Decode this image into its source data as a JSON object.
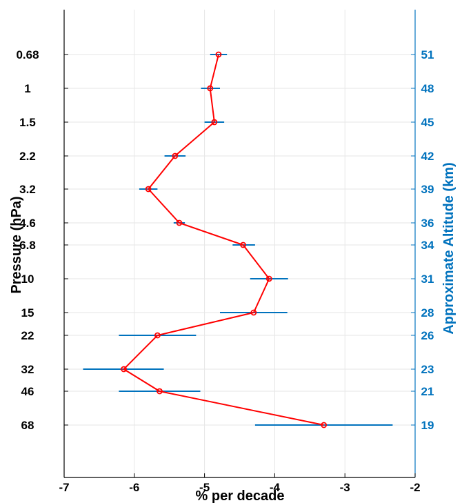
{
  "chart_data": {
    "type": "line",
    "xlabel": "% per decade",
    "ylabel": "Pressure (hPa)",
    "y2label": "Approximate Altitude (km)",
    "xlim": [
      -7,
      -2
    ],
    "x_ticks": [
      -7,
      -6,
      -5,
      -4,
      -3,
      -2
    ],
    "x_tick_labels": [
      "-7",
      "-6",
      "-5",
      "-4",
      "-3",
      "-2"
    ],
    "grid": true,
    "levels": [
      {
        "pressure_label": "0.68",
        "altitude_label": "51",
        "value": -4.8,
        "error_low": -4.92,
        "error_high": -4.68
      },
      {
        "pressure_label": "1",
        "altitude_label": "48",
        "value": -4.92,
        "error_low": -5.05,
        "error_high": -4.78
      },
      {
        "pressure_label": "1.5",
        "altitude_label": "45",
        "value": -4.86,
        "error_low": -5.0,
        "error_high": -4.72
      },
      {
        "pressure_label": "2.2",
        "altitude_label": "42",
        "value": -5.42,
        "error_low": -5.57,
        "error_high": -5.27
      },
      {
        "pressure_label": "3.2",
        "altitude_label": "39",
        "value": -5.8,
        "error_low": -5.93,
        "error_high": -5.67
      },
      {
        "pressure_label": "4.6",
        "altitude_label": "36",
        "value": -5.36,
        "error_low": -5.44,
        "error_high": -5.28
      },
      {
        "pressure_label": "6.8",
        "altitude_label": "34",
        "value": -4.45,
        "error_low": -4.6,
        "error_high": -4.28
      },
      {
        "pressure_label": "10",
        "altitude_label": "31",
        "value": -4.08,
        "error_low": -4.35,
        "error_high": -3.81
      },
      {
        "pressure_label": "15",
        "altitude_label": "28",
        "value": -4.3,
        "error_low": -4.78,
        "error_high": -3.82
      },
      {
        "pressure_label": "22",
        "altitude_label": "26",
        "value": -5.67,
        "error_low": -6.22,
        "error_high": -5.12
      },
      {
        "pressure_label": "32",
        "altitude_label": "23",
        "value": -6.15,
        "error_low": -6.73,
        "error_high": -5.58
      },
      {
        "pressure_label": "46",
        "altitude_label": "21",
        "value": -5.64,
        "error_low": -6.22,
        "error_high": -5.06
      },
      {
        "pressure_label": "68",
        "altitude_label": "19",
        "value": -3.3,
        "error_low": -4.28,
        "error_high": -2.32
      }
    ],
    "colors": {
      "line": "#ff0000",
      "error_bar": "#0072BD",
      "right_axis": "#0072BD",
      "left_axis": "#000000",
      "grid": "#e6e6e6"
    }
  }
}
